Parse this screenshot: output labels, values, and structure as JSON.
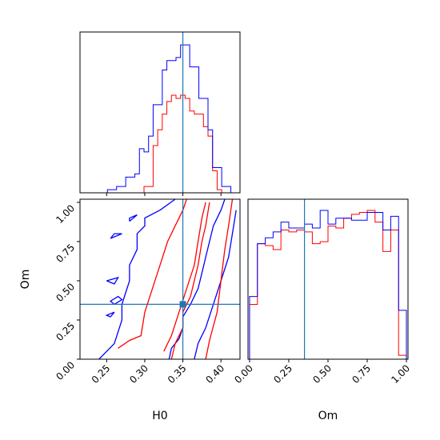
{
  "chart_data": {
    "type": "corner",
    "parameters": [
      "H0",
      "Om"
    ],
    "truth": {
      "H0": 0.35,
      "Om": 0.35
    },
    "colors": {
      "blue": "#0000ff",
      "red": "#ff0000",
      "truth": "#1f77b4",
      "frame": "#000000"
    },
    "panels": [
      {
        "id": "hist-H0",
        "type": "histogram",
        "xlim": [
          0.215,
          0.425
        ],
        "x_ticks": [
          0.25,
          0.3,
          0.35,
          0.4
        ],
        "x_tick_labels_shown": false,
        "bin_edges": [
          0.215,
          0.221,
          0.227,
          0.233,
          0.239,
          0.245,
          0.251,
          0.257,
          0.263,
          0.269,
          0.275,
          0.281,
          0.287,
          0.293,
          0.299,
          0.305,
          0.311,
          0.317,
          0.323,
          0.329,
          0.335,
          0.341,
          0.347,
          0.353,
          0.359,
          0.365,
          0.371,
          0.377,
          0.383,
          0.389,
          0.395,
          0.401,
          0.407,
          0.413,
          0.419,
          0.425
        ],
        "series": [
          {
            "name": "blue",
            "color": "#0000ff",
            "values": [
              0,
              0,
              0,
              0,
              0,
              0,
              1,
              1,
              2,
              2,
              5,
              5,
              6,
              14,
              13,
              18,
              28,
              28,
              39,
              42,
              42,
              43,
              47,
              47,
              40,
              40,
              30,
              30,
              20,
              8,
              8,
              2,
              2,
              0,
              0
            ]
          },
          {
            "name": "red",
            "color": "#ff0000",
            "values": [
              0,
              0,
              0,
              0,
              0,
              0,
              0,
              0,
              0,
              0,
              0,
              0,
              0,
              0,
              2,
              2,
              15,
              20,
              25,
              29,
              31,
              30,
              31,
              30,
              26,
              25,
              25,
              21,
              18,
              7,
              1,
              0,
              0,
              0,
              0
            ]
          }
        ]
      },
      {
        "id": "contour-H0-Om",
        "type": "contour",
        "xlim": [
          0.215,
          0.425
        ],
        "ylim": [
          0.0,
          1.02
        ],
        "x_ticks": [
          0.25,
          0.3,
          0.35,
          0.4
        ],
        "x_tick_labels": [
          "0.25",
          "0.30",
          "0.35",
          "0.40"
        ],
        "y_ticks": [
          0.0,
          0.25,
          0.5,
          0.75,
          1.0
        ],
        "y_tick_labels": [
          "0.00",
          "0.25",
          "0.50",
          "0.75",
          "1.00"
        ],
        "xlabel": "H0",
        "ylabel": "Om",
        "truth_marker": [
          0.35,
          0.35
        ],
        "series": [
          {
            "name": "blue",
            "color": "#0000ff",
            "contours": [
              [
                [
                  0.24,
                  0.0
                ],
                [
                  0.26,
                  0.1
                ],
                [
                  0.27,
                  0.25
                ],
                [
                  0.27,
                  0.35
                ],
                [
                  0.28,
                  0.5
                ],
                [
                  0.28,
                  0.6
                ],
                [
                  0.29,
                  0.7
                ],
                [
                  0.29,
                  0.8
                ],
                [
                  0.3,
                  0.85
                ],
                [
                  0.3,
                  0.9
                ],
                [
                  0.32,
                  0.95
                ],
                [
                  0.34,
                  1.02
                ]
              ],
              [
                [
                  0.332,
                  0.0
                ],
                [
                  0.335,
                  0.07
                ],
                [
                  0.345,
                  0.13
                ],
                [
                  0.35,
                  0.2
                ],
                [
                  0.35,
                  0.27
                ],
                [
                  0.36,
                  0.35
                ],
                [
                  0.37,
                  0.45
                ],
                [
                  0.375,
                  0.55
                ],
                [
                  0.38,
                  0.65
                ],
                [
                  0.385,
                  0.75
                ],
                [
                  0.39,
                  0.85
                ],
                [
                  0.4,
                  0.95
                ],
                [
                  0.405,
                  1.02
                ]
              ],
              [
                [
                  0.365,
                  0.0
                ],
                [
                  0.37,
                  0.1
                ],
                [
                  0.38,
                  0.2
                ],
                [
                  0.39,
                  0.35
                ],
                [
                  0.4,
                  0.5
                ],
                [
                  0.41,
                  0.65
                ],
                [
                  0.415,
                  0.8
                ],
                [
                  0.42,
                  0.95
                ]
              ],
              [
                [
                  0.255,
                  0.27
                ],
                [
                  0.26,
                  0.3
                ],
                [
                  0.25,
                  0.28
                ],
                [
                  0.255,
                  0.27
                ]
              ],
              [
                [
                  0.26,
                  0.35
                ],
                [
                  0.27,
                  0.38
                ],
                [
                  0.265,
                  0.4
                ],
                [
                  0.255,
                  0.37
                ],
                [
                  0.26,
                  0.35
                ]
              ],
              [
                [
                  0.25,
                  0.5
                ],
                [
                  0.26,
                  0.48
                ],
                [
                  0.265,
                  0.52
                ],
                [
                  0.25,
                  0.5
                ]
              ],
              [
                [
                  0.255,
                  0.77
                ],
                [
                  0.27,
                  0.8
                ],
                [
                  0.26,
                  0.8
                ],
                [
                  0.255,
                  0.77
                ]
              ],
              [
                [
                  0.28,
                  0.88
                ],
                [
                  0.29,
                  0.92
                ],
                [
                  0.28,
                  0.9
                ],
                [
                  0.28,
                  0.88
                ]
              ]
            ]
          },
          {
            "name": "red",
            "color": "#ff0000",
            "contours": [
              [
                [
                  0.265,
                  0.07
                ],
                [
                  0.28,
                  0.12
                ],
                [
                  0.295,
                  0.15
                ],
                [
                  0.3,
                  0.3
                ],
                [
                  0.31,
                  0.45
                ],
                [
                  0.32,
                  0.6
                ],
                [
                  0.33,
                  0.75
                ],
                [
                  0.34,
                  0.85
                ],
                [
                  0.35,
                  0.95
                ],
                [
                  0.355,
                  1.02
                ]
              ],
              [
                [
                  0.335,
                  0.0
                ],
                [
                  0.34,
                  0.1
                ],
                [
                  0.35,
                  0.2
                ],
                [
                  0.35,
                  0.3
                ],
                [
                  0.36,
                  0.4
                ],
                [
                  0.37,
                  0.6
                ],
                [
                  0.375,
                  0.75
                ],
                [
                  0.38,
                  0.85
                ],
                [
                  0.385,
                  1.0
                ]
              ],
              [
                [
                  0.325,
                  0.05
                ],
                [
                  0.335,
                  0.15
                ],
                [
                  0.345,
                  0.3
                ],
                [
                  0.355,
                  0.45
                ],
                [
                  0.365,
                  0.6
                ],
                [
                  0.37,
                  0.75
                ],
                [
                  0.375,
                  0.9
                ],
                [
                  0.38,
                  1.0
                ]
              ],
              [
                [
                  0.38,
                  0.0
                ],
                [
                  0.385,
                  0.12
                ],
                [
                  0.395,
                  0.3
                ],
                [
                  0.4,
                  0.5
                ],
                [
                  0.405,
                  0.7
                ],
                [
                  0.41,
                  0.85
                ],
                [
                  0.415,
                  1.02
                ]
              ]
            ]
          }
        ]
      },
      {
        "id": "hist-Om",
        "type": "histogram",
        "xlim": [
          -0.01,
          1.01
        ],
        "x_ticks": [
          0.0,
          0.25,
          0.5,
          0.75,
          1.0
        ],
        "x_tick_labels": [
          "0.00",
          "0.25",
          "0.50",
          "0.75",
          "1.00"
        ],
        "xlabel": "Om",
        "bin_edges": [
          0.0,
          0.05,
          0.1,
          0.15,
          0.2,
          0.25,
          0.3,
          0.35,
          0.4,
          0.45,
          0.5,
          0.55,
          0.6,
          0.65,
          0.7,
          0.75,
          0.8,
          0.85,
          0.9,
          0.95,
          1.0
        ],
        "series": [
          {
            "name": "blue",
            "color": "#0000ff",
            "values": [
              32,
              59,
              62,
              65,
              70,
              67,
              67,
              69,
              67,
              76,
              69,
              72,
              72,
              71,
              71,
              75,
              75,
              66,
              73,
              25
            ]
          },
          {
            "name": "red",
            "color": "#ff0000",
            "values": [
              28,
              59,
              58,
              56,
              66,
              65,
              66,
              65,
              59,
              60,
              68,
              67,
              72,
              74,
              75,
              76,
              70,
              55,
              66,
              2
            ]
          }
        ]
      }
    ]
  }
}
